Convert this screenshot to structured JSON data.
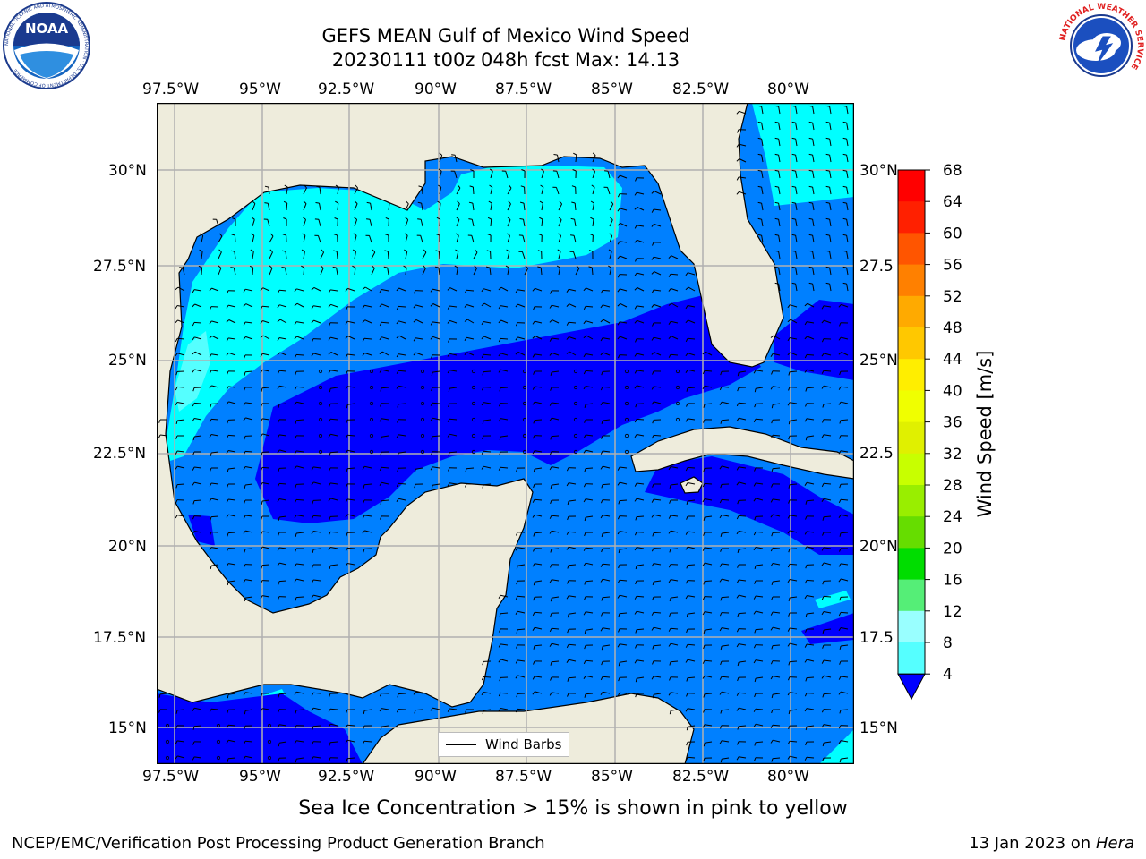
{
  "title": {
    "line1": "GEFS MEAN Gulf of Mexico Wind Speed",
    "line2": "20230111 t00z 048h fcst   Max: 14.13"
  },
  "axes": {
    "lon_labels": [
      "97.5°W",
      "95°W",
      "92.5°W",
      "90°W",
      "87.5°W",
      "85°W",
      "82.5°W",
      "80°W"
    ],
    "lat_labels_left": [
      "30°N",
      "27.5°N",
      "25°N",
      "22.5°N",
      "20°N",
      "17.5°N",
      "15°N"
    ],
    "lat_labels_right": [
      "30°N",
      "27.5",
      "25°N",
      "22.5",
      "20°N",
      "17.5",
      "15°N"
    ]
  },
  "legend": {
    "label": "Wind Barbs"
  },
  "colorbar": {
    "label": "Wind Speed [m/s]",
    "ticks": [
      "68",
      "64",
      "60",
      "56",
      "52",
      "48",
      "44",
      "40",
      "36",
      "32",
      "28",
      "24",
      "20",
      "16",
      "12",
      "8",
      "4"
    ],
    "colors": [
      "#ff0000",
      "#ff2000",
      "#ff5500",
      "#ff8000",
      "#ffaa00",
      "#ffc800",
      "#ffee00",
      "#f0ff00",
      "#e0f000",
      "#c8ff00",
      "#99ee00",
      "#66dd00",
      "#00dd00",
      "#55ee77",
      "#99ffff",
      "#55ffff",
      "#00ffff",
      "#0080ff"
    ],
    "extend_color": "#0000ff"
  },
  "map_colors": {
    "land": "#eeecdc",
    "ws_4_8": "#0080ff",
    "ws_lt_4": "#0000ff",
    "ws_8_12": "#00ffff",
    "ws_12_16": "#55ffff"
  },
  "caption": "Sea Ice Concentration > 15% is shown in pink to yellow",
  "footer_left": "NCEP/EMC/Verification Post Processing Product Generation Branch",
  "footer_right_date": "13 Jan 2023 on ",
  "footer_right_machine": "Hera",
  "logos": {
    "noaa_text": "NOAA",
    "noaa_ring": "NATIONAL OCEANIC AND ATMOSPHERIC ADMINISTRATION · U.S. DEPARTMENT OF COMMERCE",
    "nws_ring": "NATIONAL WEATHER SERVICE"
  }
}
